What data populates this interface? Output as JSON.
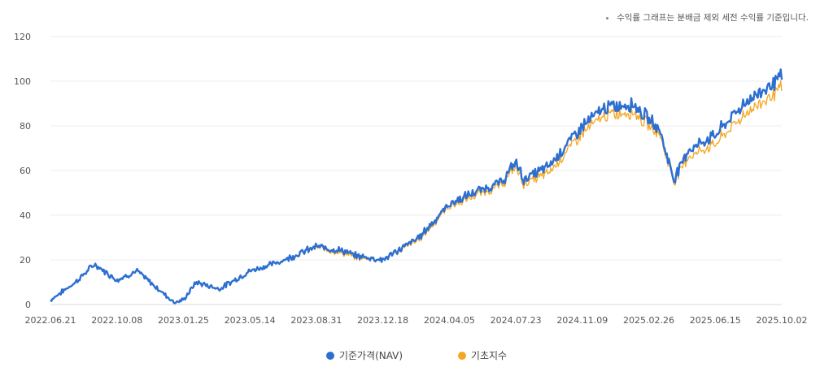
{
  "note": "수익률 그래프는 분배금 제외 세전 수익률 기준입니다.",
  "chart_data": {
    "type": "line",
    "ylim": [
      0,
      120
    ],
    "yticks": [
      "0",
      "20",
      "40",
      "60",
      "80",
      "100",
      "120"
    ],
    "xticks": [
      "2022.06.21",
      "2022.10.08",
      "2023.01.25",
      "2023.05.14",
      "2023.08.31",
      "2023.12.18",
      "2024.04.05",
      "2024.07.23",
      "2024.11.09",
      "2025.02.26",
      "2025.06.15",
      "2025.10.02"
    ],
    "x": [
      "2022.06.21",
      "2022.08.01",
      "2022.09.01",
      "2022.10.08",
      "2022.11.10",
      "2022.12.10",
      "2023.01.10",
      "2023.01.25",
      "2023.02.15",
      "2023.03.25",
      "2023.05.14",
      "2023.06.30",
      "2023.08.31",
      "2023.10.15",
      "2023.11.01",
      "2023.12.18",
      "2024.02.15",
      "2024.04.05",
      "2024.05.15",
      "2024.07.01",
      "2024.07.23",
      "2024.08.05",
      "2024.09.15",
      "2024.11.09",
      "2024.12.15",
      "2025.01.31",
      "2025.02.26",
      "2025.03.15",
      "2025.04.08",
      "2025.05.01",
      "2025.06.15",
      "2025.08.01",
      "2025.10.02"
    ],
    "series": [
      {
        "name": "기준가격(NAV)",
        "color": "#2c6fd1",
        "values": [
          2,
          10,
          18,
          11,
          15,
          8,
          1,
          2,
          10,
          7,
          15,
          19,
          26,
          24,
          22,
          20,
          30,
          45,
          50,
          55,
          64,
          56,
          62,
          80,
          88,
          90,
          83,
          79,
          56,
          69,
          76,
          90,
          102
        ]
      },
      {
        "name": "기초지수",
        "color": "#f5a623",
        "values": [
          2,
          10,
          18,
          11,
          15,
          8,
          1,
          2,
          10,
          7,
          15,
          19,
          25.5,
          23,
          21,
          20,
          29,
          44,
          48.5,
          53.5,
          62,
          54,
          59,
          77,
          84.5,
          86.5,
          80,
          77,
          55,
          66,
          72,
          85,
          97
        ]
      }
    ]
  }
}
